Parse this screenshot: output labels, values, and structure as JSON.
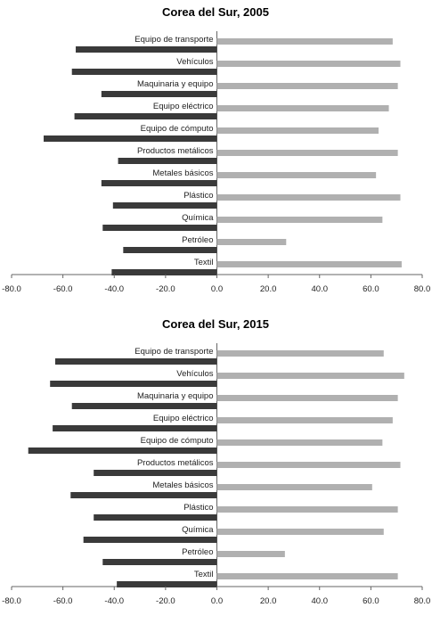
{
  "chart_data": [
    {
      "type": "bar",
      "title": "Corea del Sur, 2005",
      "categories": [
        "Equipo de transporte",
        "Vehículos",
        "Maquinaria y equipo",
        "Equipo eléctrico",
        "Equipo de cómputo",
        "Productos metálicos",
        "Metales básicos",
        "Plástico",
        "Química",
        "Petróleo",
        "Textil"
      ],
      "series": [
        {
          "values": [
            -55,
            -56.5,
            -45,
            -55.5,
            -67.5,
            -38.5,
            -45,
            -40.5,
            -44.5,
            -36.5,
            -41
          ],
          "color": "#3a3a3a"
        },
        {
          "values": [
            68.5,
            71.5,
            70.5,
            67,
            63,
            70.5,
            62,
            71.5,
            64.5,
            27,
            72
          ],
          "color": "#b0b0b0"
        }
      ],
      "xlim": [
        -80,
        80
      ],
      "xticks": [
        "-80.0",
        "-60.0",
        "-40.0",
        "-20.0",
        "0.0",
        "20.0",
        "40.0",
        "60.0",
        "80.0"
      ],
      "xlabel": "",
      "ylabel": "",
      "grid": false
    },
    {
      "type": "bar",
      "title": "Corea del Sur, 2015",
      "categories": [
        "Equipo de transporte",
        "Vehículos",
        "Maquinaria y equipo",
        "Equipo eléctrico",
        "Equipo de cómputo",
        "Productos metálicos",
        "Metales básicos",
        "Plástico",
        "Química",
        "Petróleo",
        "Textil"
      ],
      "series": [
        {
          "values": [
            -63,
            -65,
            -56.5,
            -64,
            -73.5,
            -48,
            -57,
            -48,
            -52,
            -44.5,
            -39
          ],
          "color": "#3a3a3a"
        },
        {
          "values": [
            65,
            73,
            70.5,
            68.5,
            64.5,
            71.5,
            60.5,
            70.5,
            65,
            26.5,
            70.5
          ],
          "color": "#b0b0b0"
        }
      ],
      "xlim": [
        -80,
        80
      ],
      "xticks": [
        "-80.0",
        "-60.0",
        "-40.0",
        "-20.0",
        "0.0",
        "20.0",
        "40.0",
        "60.0",
        "80.0"
      ],
      "xlabel": "",
      "ylabel": "",
      "grid": false
    }
  ]
}
